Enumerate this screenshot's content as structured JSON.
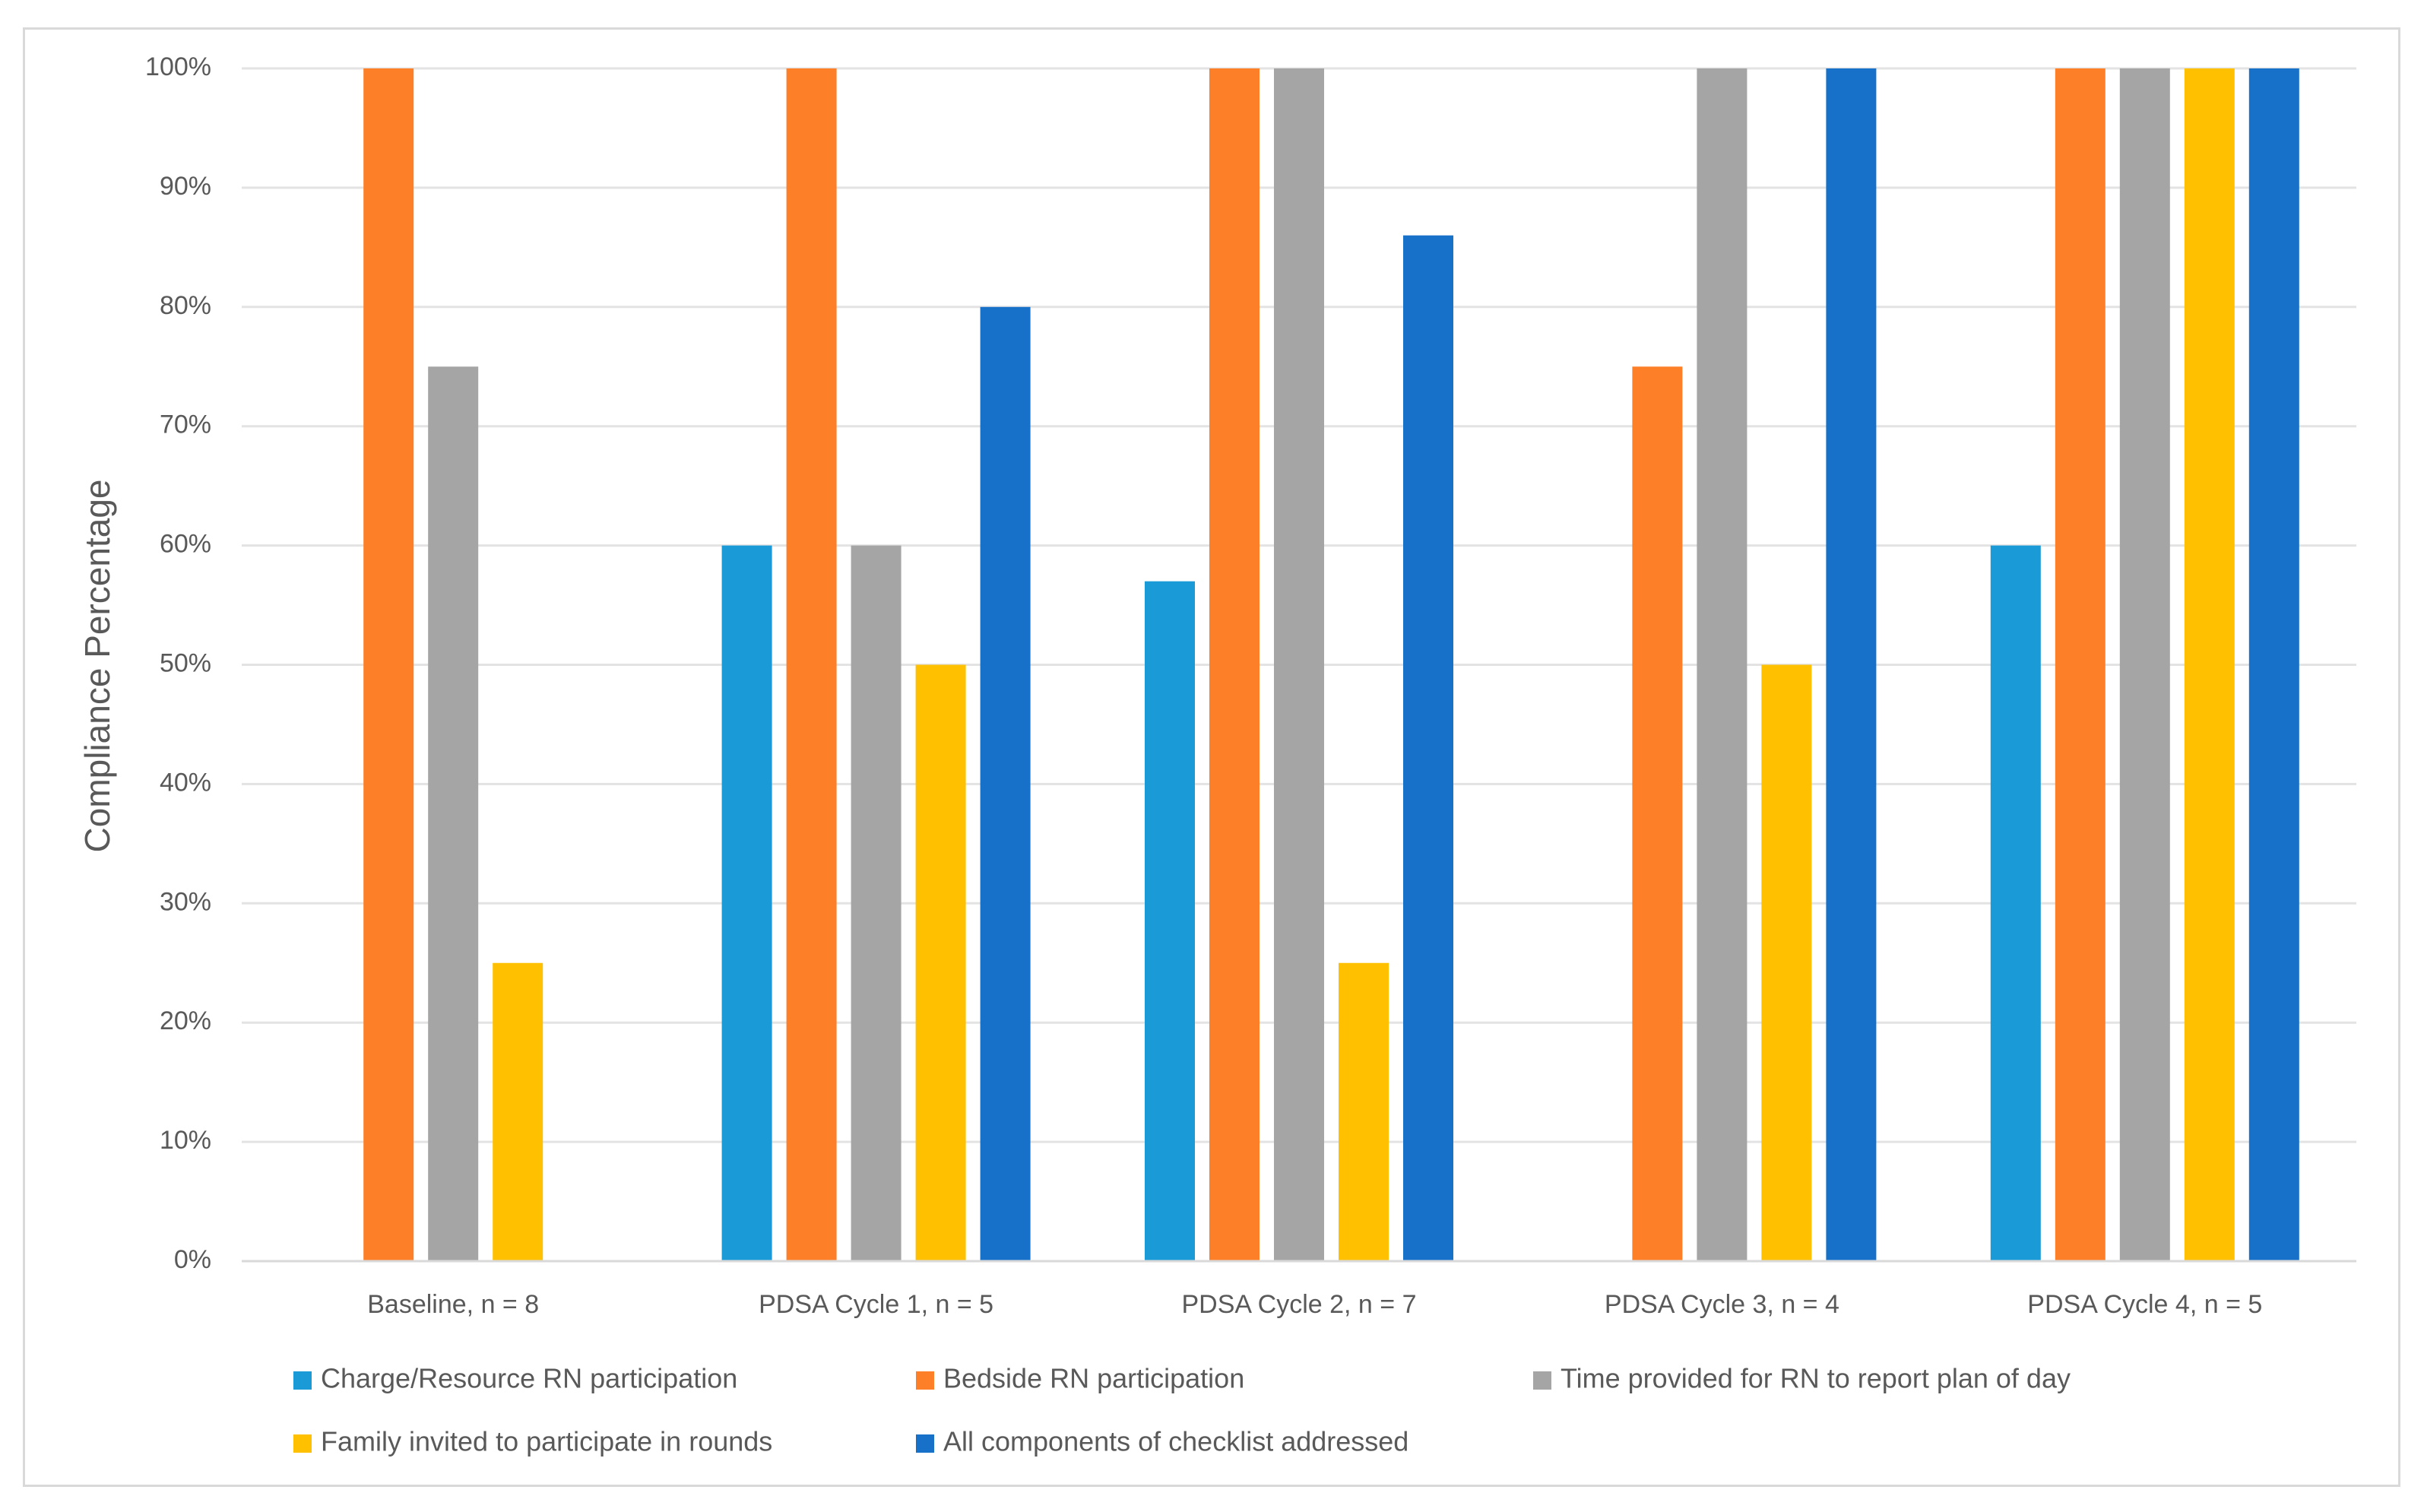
{
  "chart_data": {
    "type": "bar",
    "title": "",
    "xlabel": "",
    "ylabel": "Compliance Percentage",
    "ylim": [
      0,
      100
    ],
    "yticks": [
      "0%",
      "10%",
      "20%",
      "30%",
      "40%",
      "50%",
      "60%",
      "70%",
      "80%",
      "90%",
      "100%"
    ],
    "categories": [
      "Baseline, n = 8",
      "PDSA Cycle 1, n = 5",
      "PDSA Cycle 2, n = 7",
      "PDSA Cycle 3, n = 4",
      "PDSA Cycle 4, n = 5"
    ],
    "grid": true,
    "legend_position": "bottom",
    "series": [
      {
        "name": "Charge/Resource RN participation",
        "color": "#1a9ad6",
        "values": [
          0,
          60,
          57,
          0,
          60
        ]
      },
      {
        "name": "Bedside RN participation",
        "color": "#fd7f28",
        "values": [
          100,
          100,
          100,
          75,
          100
        ]
      },
      {
        "name": "Time provided for RN to report plan of day",
        "color": "#a5a5a5",
        "values": [
          75,
          60,
          100,
          100,
          100
        ]
      },
      {
        "name": "Family invited to participate in rounds",
        "color": "#ffc000",
        "values": [
          25,
          50,
          25,
          50,
          100
        ]
      },
      {
        "name": "All components of checklist addressed",
        "color": "#1771c9",
        "values": [
          0,
          80,
          86,
          100,
          100
        ]
      }
    ]
  }
}
